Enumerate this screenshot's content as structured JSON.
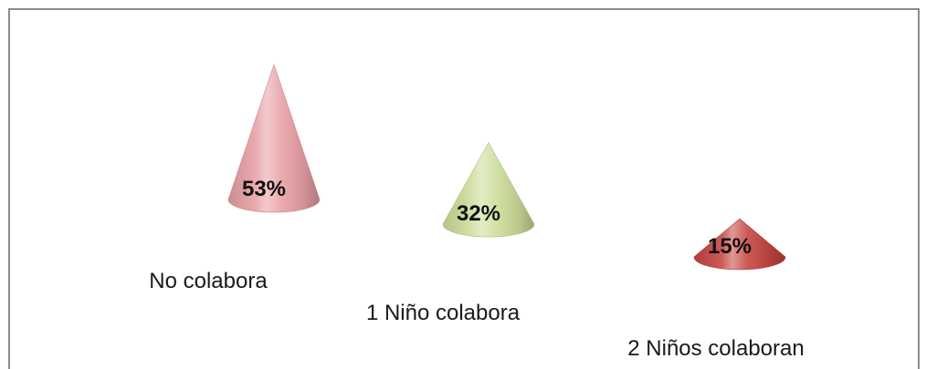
{
  "chart_data": {
    "type": "bar",
    "categories": [
      "No colabora",
      "1 Niño colabora",
      "2 Niños colaboran"
    ],
    "values": [
      53,
      32,
      15
    ],
    "data_labels": [
      "53%",
      "32%",
      "15%"
    ],
    "title": "",
    "xlabel": "",
    "ylabel": "",
    "ylim": [
      0,
      60
    ],
    "grid": false,
    "legend": "none",
    "colors": [
      "#e8a0a4",
      "#ccdd99",
      "#c6443f"
    ]
  }
}
